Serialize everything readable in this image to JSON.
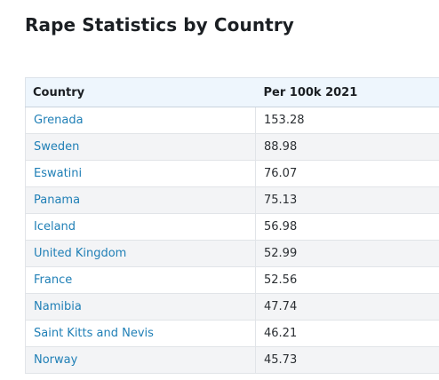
{
  "page": {
    "title": "Rape Statistics by Country"
  },
  "table": {
    "columns": [
      "Country",
      "Per 100k 2021"
    ],
    "rows": [
      {
        "country": "Grenada",
        "rate": "153.28"
      },
      {
        "country": "Sweden",
        "rate": "88.98"
      },
      {
        "country": "Eswatini",
        "rate": "76.07"
      },
      {
        "country": "Panama",
        "rate": "75.13"
      },
      {
        "country": "Iceland",
        "rate": "56.98"
      },
      {
        "country": "United Kingdom",
        "rate": "52.99"
      },
      {
        "country": "France",
        "rate": "52.56"
      },
      {
        "country": "Namibia",
        "rate": "47.74"
      },
      {
        "country": "Saint Kitts and Nevis",
        "rate": "46.21"
      },
      {
        "country": "Norway",
        "rate": "45.73"
      }
    ]
  },
  "colors": {
    "link": "#1f7fb6",
    "header_bg": "#eef6fd",
    "stripe_bg": "#f3f4f6"
  }
}
